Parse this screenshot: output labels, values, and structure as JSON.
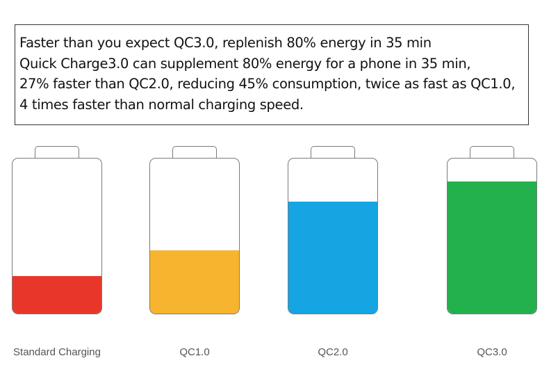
{
  "description_box": {
    "lines": [
      "Faster than you expect QC3.0, replenish 80% energy in 35 min",
      "Quick Charge3.0 can supplement 80% energy for a phone in 35 min,",
      "27% faster than QC2.0, reducing 45% consumption, twice as fast as QC1.0,",
      "4 times faster than normal charging speed."
    ]
  },
  "batteries": [
    {
      "label": "Standard Charging",
      "fill_fraction": 0.24,
      "color": "#e8372a"
    },
    {
      "label": "QC1.0",
      "fill_fraction": 0.41,
      "color": "#f6b42f"
    },
    {
      "label": "QC2.0",
      "fill_fraction": 0.72,
      "color": "#14a5e2"
    },
    {
      "label": "QC3.0",
      "fill_fraction": 0.85,
      "color": "#23b14d"
    }
  ]
}
